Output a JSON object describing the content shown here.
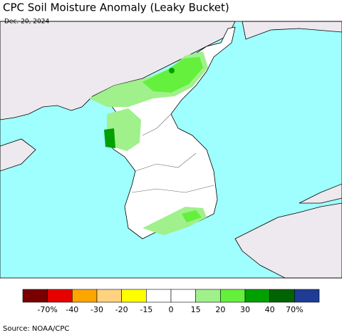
{
  "header": {
    "title": "CPC Soil Moisture Anomaly (Leaky Bucket)",
    "date": "Dec. 20, 2024"
  },
  "legend": {
    "colors": [
      "#7a0000",
      "#e60000",
      "#ffa500",
      "#ffd27f",
      "#ffff00",
      "#ffffff",
      "#ffffff",
      "#a0f08c",
      "#64f03c",
      "#00a000",
      "#006400",
      "#1e3c96"
    ],
    "labels": [
      "-70%",
      "-40",
      "-30",
      "-20",
      "-15",
      "0",
      "15",
      "20",
      "30",
      "40",
      "70%"
    ]
  },
  "footer": {
    "source": "Source: NOAA/CPC"
  }
}
